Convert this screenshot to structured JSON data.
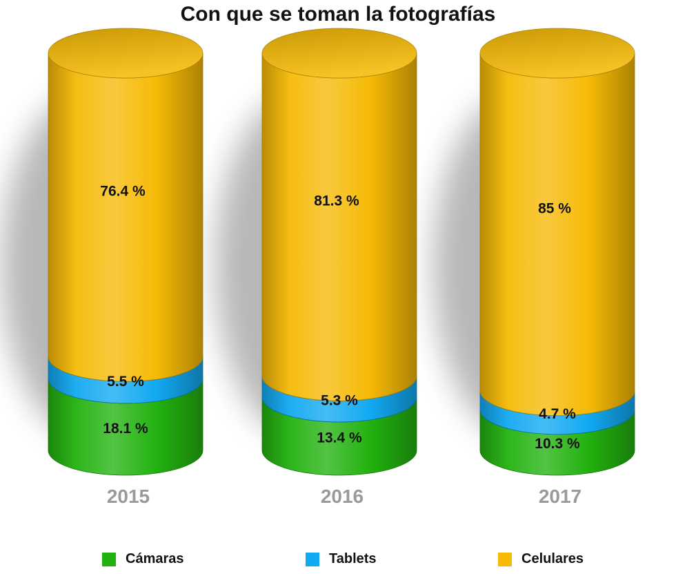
{
  "chart_data": {
    "type": "bar",
    "stacked": true,
    "title": "Con que se toman la fotografías",
    "categories": [
      "2015",
      "2016",
      "2017"
    ],
    "series": [
      {
        "name": "Cámaras",
        "color": "#22B20F",
        "values": [
          18.1,
          13.4,
          10.3
        ],
        "labels": [
          "18.1 %",
          "13.4 %",
          "10.3 %"
        ]
      },
      {
        "name": "Tablets",
        "color": "#12A9F2",
        "values": [
          5.5,
          5.3,
          4.7
        ],
        "labels": [
          "5.5 %",
          "5.3 %",
          "4.7 %"
        ]
      },
      {
        "name": "Celulares",
        "color": "#F6BA06",
        "values": [
          76.4,
          81.3,
          85
        ],
        "labels": [
          "76.4 %",
          "81.3 %",
          "85 %"
        ]
      }
    ],
    "legend_position": "bottom",
    "grid": false
  }
}
